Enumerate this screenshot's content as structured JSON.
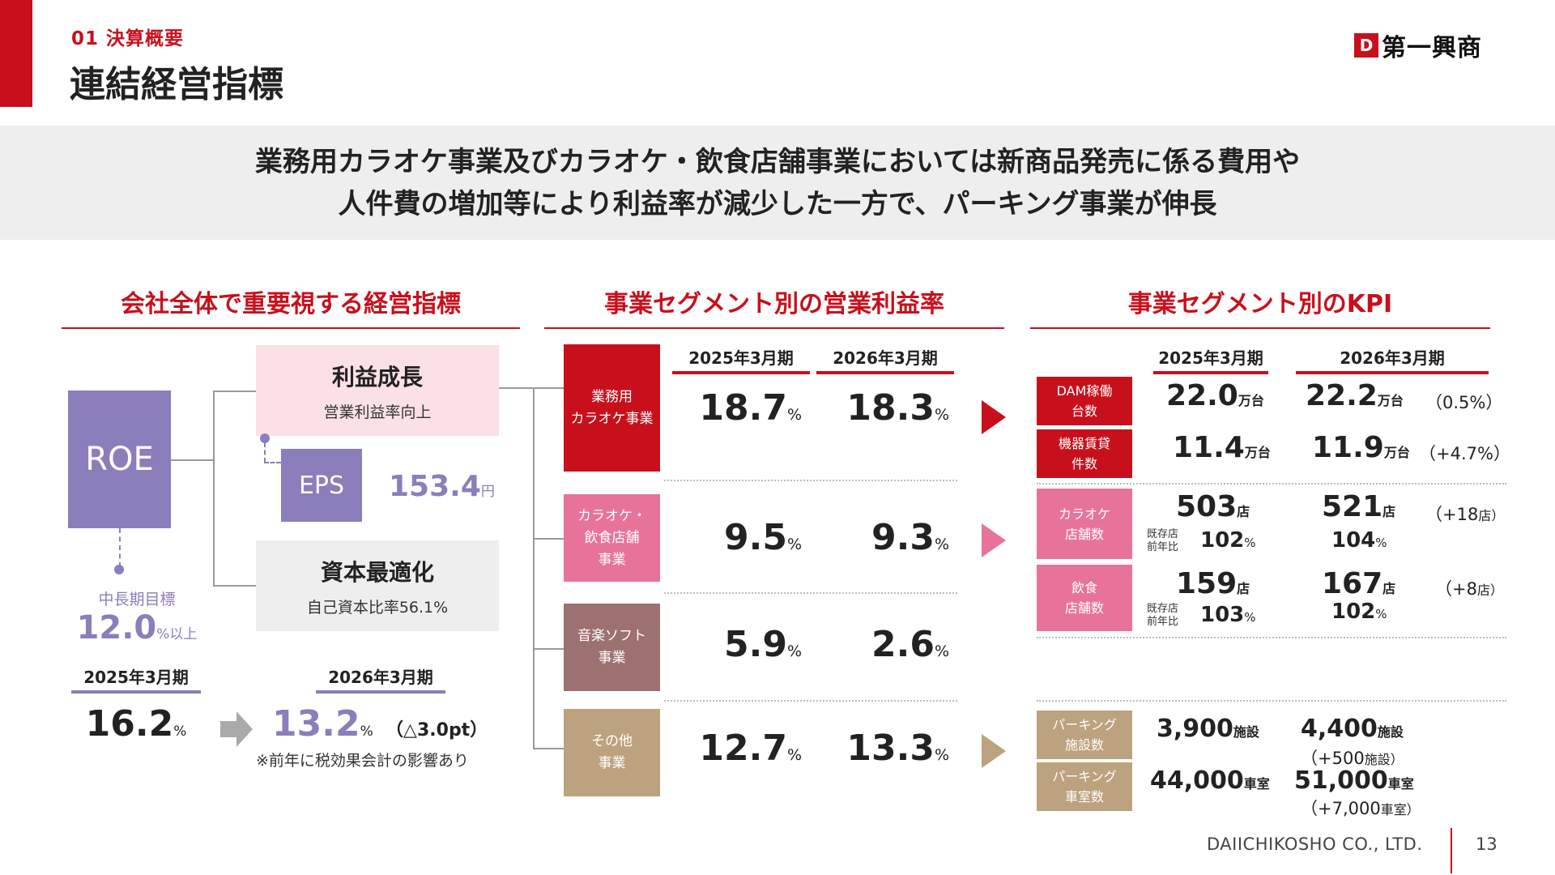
{
  "header": {
    "section_label": "01 決算概要",
    "title": "連結経営指標",
    "logo_mark": "D",
    "logo_text": "第一興商"
  },
  "banner": {
    "line1": "業務用カラオケ事業及びカラオケ・飲食店舗事業においては新商品発売に係る費用や",
    "line2": "人件費の増加等により利益率が減少した一方で、パーキング事業が伸長"
  },
  "left": {
    "heading": "会社全体で重要視する経営指標",
    "roe": "ROE",
    "profit_growth_title": "利益成長",
    "profit_growth_sub": "営業利益率向上",
    "eps_label": "EPS",
    "eps_value": "153.4",
    "eps_unit": "円",
    "capital_title": "資本最適化",
    "capital_sub": "自己資本比率56.1%",
    "target_label": "中長期目標",
    "target_value": "12.0",
    "target_unit": "%以上",
    "period_2025": "2025年3月期",
    "period_2026": "2026年3月期",
    "roe_2025": "16.2",
    "roe_2026": "13.2",
    "pct": "%",
    "roe_change": "（△3.0pt）",
    "note": "※前年に税効果会計の影響あり"
  },
  "middle": {
    "heading": "事業セグメント別の営業利益率",
    "period_2025": "2025年3月期",
    "period_2026": "2026年3月期",
    "pct": "%",
    "segments": [
      {
        "name_l1": "業務用",
        "name_l2": "カラオケ事業",
        "name_l3": "",
        "v2025": "18.7",
        "v2026": "18.3",
        "color": "#c8101c"
      },
      {
        "name_l1": "カラオケ・",
        "name_l2": "飲食店舗",
        "name_l3": "事業",
        "v2025": "9.5",
        "v2026": "9.3",
        "color": "#e8739a"
      },
      {
        "name_l1": "音楽ソフト",
        "name_l2": "事業",
        "name_l3": "",
        "v2025": "5.9",
        "v2026": "2.6",
        "color": "#9e7171"
      },
      {
        "name_l1": "その他",
        "name_l2": "事業",
        "name_l3": "",
        "v2025": "12.7",
        "v2026": "13.3",
        "color": "#bca27e"
      }
    ]
  },
  "right": {
    "heading": "事業セグメント別のKPI",
    "period_2025": "2025年3月期",
    "period_2026": "2026年3月期",
    "yoy_l1": "既存店",
    "yoy_l2": "前年比",
    "pct": "%",
    "kpis": [
      {
        "label_l1": "DAM稼働",
        "label_l2": "台数",
        "v2025": "22.0",
        "v2026": "22.2",
        "unit": "万台",
        "change": "（0.5%）",
        "change_unit": ""
      },
      {
        "label_l1": "機器賃貸",
        "label_l2": "件数",
        "v2025": "11.4",
        "v2026": "11.9",
        "unit": "万台",
        "change": "（+4.7%）",
        "change_unit": ""
      },
      {
        "label_l1": "カラオケ",
        "label_l2": "店舗数",
        "v2025": "503",
        "v2026": "521",
        "unit": "店",
        "change": "（+18",
        "change_unit": "店）",
        "yoy2025": "102",
        "yoy2026": "104"
      },
      {
        "label_l1": "飲食",
        "label_l2": "店舗数",
        "v2025": "159",
        "v2026": "167",
        "unit": "店",
        "change": "（+8",
        "change_unit": "店）",
        "yoy2025": "103",
        "yoy2026": "102"
      },
      {
        "label_l1": "パーキング",
        "label_l2": "施設数",
        "v2025": "3,900",
        "v2026": "4,400",
        "unit": "施設",
        "change": "（+500",
        "change_unit": "施設）"
      },
      {
        "label_l1": "パーキング",
        "label_l2": "車室数",
        "v2025": "44,000",
        "v2026": "51,000",
        "unit": "車室",
        "change": "（+7,000",
        "change_unit": "車室）"
      }
    ],
    "colors": {
      "red": "#c8101c",
      "pink": "#e8739a",
      "tan": "#bca27e"
    }
  },
  "footer": {
    "company": "DAIICHIKOSHO CO., LTD.",
    "page": "13"
  }
}
